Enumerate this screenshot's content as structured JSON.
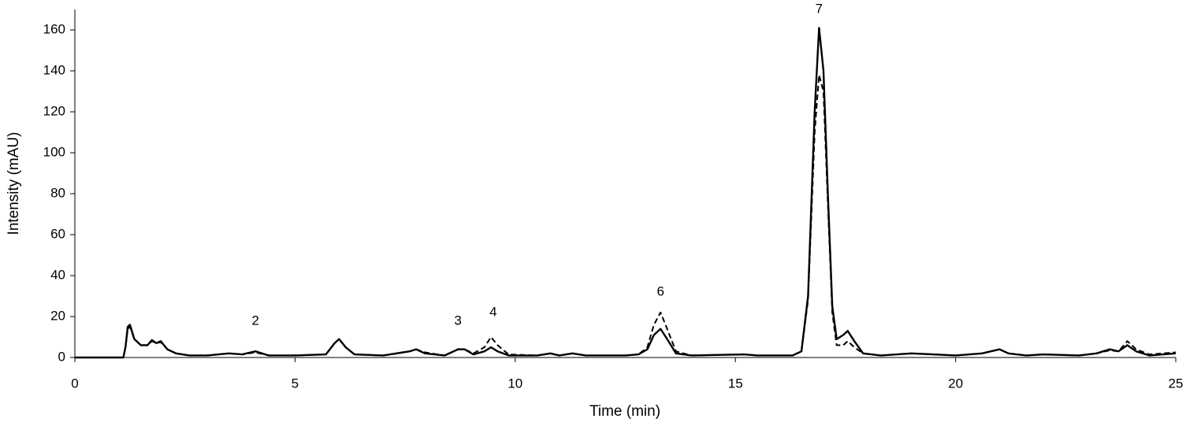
{
  "chart_data": {
    "type": "line",
    "xlabel": "Time (min)",
    "ylabel": "Intensity (mAU)",
    "x": [
      0,
      1.1,
      1.15,
      1.2,
      1.25,
      1.35,
      1.5,
      1.65,
      1.75,
      1.85,
      1.95,
      2.1,
      2.3,
      2.6,
      3.0,
      3.5,
      3.8,
      4.1,
      4.4,
      5.0,
      5.7,
      5.9,
      6.0,
      6.15,
      6.35,
      7.0,
      7.6,
      7.75,
      7.95,
      8.4,
      8.7,
      8.85,
      9.05,
      9.3,
      9.45,
      9.6,
      9.85,
      10.5,
      10.8,
      11.0,
      11.3,
      11.6,
      12.5,
      12.8,
      13.0,
      13.15,
      13.3,
      13.45,
      13.65,
      14.0,
      15.2,
      15.5,
      16.3,
      16.5,
      16.65,
      16.8,
      16.9,
      17.0,
      17.1,
      17.2,
      17.3,
      17.45,
      17.55,
      17.7,
      17.9,
      18.3,
      19.0,
      19.5,
      20.0,
      20.6,
      21.0,
      21.2,
      21.6,
      22.0,
      22.8,
      23.2,
      23.5,
      23.7,
      23.9,
      24.1,
      24.4,
      25
    ],
    "series": [
      {
        "color": "#000000",
        "linestyle": "solid",
        "values": [
          0,
          0,
          5,
          15,
          16,
          9,
          6,
          6,
          8.5,
          7,
          8,
          4,
          2,
          1,
          1,
          2,
          1.5,
          3,
          1,
          1,
          1.5,
          7,
          9,
          5,
          1.5,
          1,
          3,
          4,
          2,
          1,
          4,
          4,
          1.5,
          3,
          5,
          3,
          1,
          1,
          2,
          1,
          2,
          1,
          1,
          1.5,
          4,
          11,
          14,
          9,
          2,
          1,
          1.5,
          1,
          1,
          3,
          30,
          120,
          161,
          140,
          80,
          25,
          9,
          11,
          13,
          8,
          2,
          1,
          2,
          1.5,
          1,
          2,
          4,
          2,
          1,
          1.5,
          1,
          2,
          4,
          3,
          6,
          3,
          1,
          2
        ]
      },
      {
        "color": "#000000",
        "linestyle": "dashed",
        "values": [
          0,
          0,
          5,
          14,
          15,
          9,
          6,
          6,
          8,
          7,
          7.5,
          4,
          2,
          1,
          1,
          2,
          1.5,
          2.5,
          1,
          1,
          1.5,
          7,
          9,
          5,
          1.5,
          1,
          3,
          4,
          2.5,
          1,
          4,
          4,
          2,
          5,
          10,
          6,
          1.5,
          1,
          2,
          1,
          2,
          1,
          1,
          1.5,
          5,
          16,
          22,
          14,
          3,
          1,
          1.5,
          1,
          1,
          3,
          28,
          110,
          138,
          130,
          75,
          22,
          6,
          6,
          8,
          5,
          2,
          1,
          2,
          1.5,
          1,
          2,
          4,
          2,
          1,
          1.5,
          1,
          2,
          3.5,
          3,
          8,
          4,
          1.5,
          2.5
        ]
      }
    ],
    "annotations": [
      {
        "text": "2",
        "x": 4.1,
        "y": 17.7
      },
      {
        "text": "3",
        "x": 8.7,
        "y": 17.7
      },
      {
        "text": "4",
        "x": 9.5,
        "y": 22
      },
      {
        "text": "6",
        "x": 13.3,
        "y": 32
      },
      {
        "text": "7",
        "x": 16.9,
        "y": 170
      }
    ],
    "xlim": [
      0,
      25
    ],
    "xticks": [
      0,
      5,
      10,
      15,
      20,
      25
    ],
    "ylim": [
      0,
      170
    ],
    "yticks": [
      0,
      20,
      40,
      60,
      80,
      100,
      120,
      140,
      160
    ],
    "grid": false
  }
}
